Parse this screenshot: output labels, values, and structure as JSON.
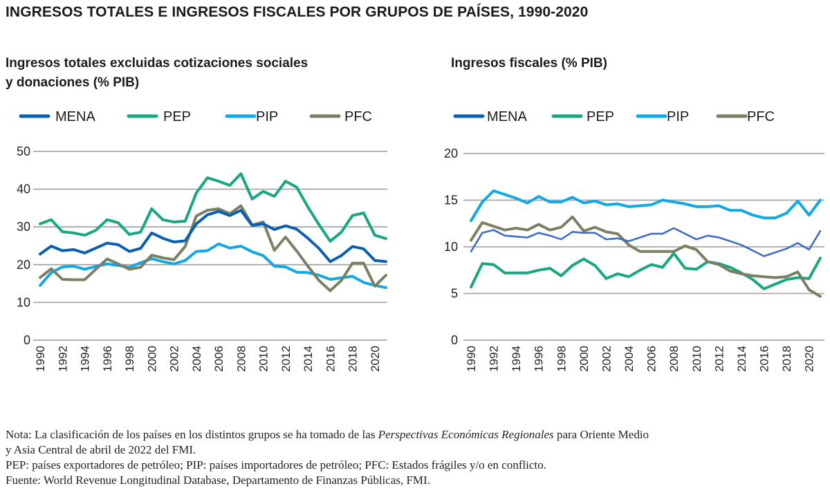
{
  "title": "INGRESOS TOTALES E INGRESOS FISCALES POR GRUPOS DE PAÍSES, 1990-2020",
  "colors": {
    "MENA": "#0a5fb0",
    "PEP": "#18a77e",
    "PIP": "#12a8e6",
    "PFC": "#7a8062",
    "MENA_right": "#3e6ec4"
  },
  "chart_data": [
    {
      "type": "line",
      "title": "Ingresos totales excluidas cotizaciones sociales y donaciones (% PIB)",
      "title_lines": [
        "Ingresos totales excluidas cotizaciones sociales",
        "y donaciones (% PIB)"
      ],
      "xlabel": "",
      "ylabel": "",
      "ylim": [
        0,
        50
      ],
      "yticks": [
        "0",
        "10",
        "20",
        "30",
        "40",
        "50"
      ],
      "ytick_values": [
        0,
        10,
        20,
        30,
        40,
        50
      ],
      "xtick_labels": [
        "1990",
        "1992",
        "1994",
        "1996",
        "1998",
        "2000",
        "2002",
        "2004",
        "2006",
        "2008",
        "2010",
        "2012",
        "2014",
        "2016",
        "2018",
        "2020"
      ],
      "grid": true,
      "legend": "top",
      "x": [
        1990,
        1991,
        1992,
        1993,
        1994,
        1995,
        1996,
        1997,
        1998,
        1999,
        2000,
        2001,
        2002,
        2003,
        2004,
        2005,
        2006,
        2007,
        2008,
        2009,
        2010,
        2011,
        2012,
        2013,
        2014,
        2015,
        2016,
        2017,
        2018,
        2019,
        2020,
        2021
      ],
      "series": [
        {
          "name": "MENA",
          "values": [
            22.8,
            24.9,
            23.7,
            24.0,
            23.1,
            24.4,
            25.7,
            25.3,
            23.5,
            24.3,
            28.4,
            27.0,
            26.0,
            26.3,
            30.8,
            33.2,
            34.1,
            33.0,
            34.4,
            30.4,
            30.8,
            29.3,
            30.3,
            29.4,
            27.0,
            24.3,
            20.8,
            22.4,
            24.8,
            24.2,
            21.1,
            20.8
          ]
        },
        {
          "name": "PEP",
          "values": [
            30.8,
            31.9,
            28.7,
            28.4,
            27.8,
            29.1,
            31.9,
            31.1,
            28.0,
            28.6,
            34.8,
            31.9,
            31.3,
            31.5,
            39.0,
            43.0,
            42.1,
            41.0,
            44.1,
            37.4,
            39.4,
            38.1,
            42.1,
            40.5,
            35.3,
            30.6,
            26.2,
            28.6,
            33.0,
            33.7,
            27.8,
            26.9
          ]
        },
        {
          "name": "PIP",
          "values": [
            14.5,
            17.9,
            19.4,
            19.6,
            18.8,
            19.5,
            20.2,
            19.8,
            19.3,
            20.5,
            21.6,
            20.8,
            20.2,
            21.1,
            23.5,
            23.7,
            25.5,
            24.4,
            24.9,
            23.4,
            22.4,
            19.6,
            19.4,
            18.0,
            17.9,
            17.2,
            16.1,
            16.5,
            16.9,
            15.3,
            14.5,
            13.9
          ]
        },
        {
          "name": "PFC",
          "values": [
            16.6,
            18.9,
            16.1,
            16.0,
            16.0,
            18.8,
            21.5,
            20.2,
            18.8,
            19.3,
            22.5,
            21.8,
            21.3,
            24.8,
            32.9,
            34.4,
            34.8,
            33.5,
            35.6,
            30.5,
            31.3,
            23.8,
            27.3,
            23.6,
            19.6,
            15.8,
            13.1,
            15.8,
            20.4,
            20.4,
            14.3,
            17.2
          ]
        }
      ]
    },
    {
      "type": "line",
      "title": "Ingresos fiscales (% PIB)",
      "title_lines": [
        "Ingresos fiscales (% PIB)"
      ],
      "xlabel": "",
      "ylabel": "",
      "ylim": [
        0,
        20
      ],
      "yticks": [
        "0",
        "5",
        "10",
        "15",
        "20"
      ],
      "ytick_values": [
        0,
        5,
        10,
        15,
        20
      ],
      "xtick_labels": [
        "1990",
        "1992",
        "1994",
        "1996",
        "1998",
        "2000",
        "2002",
        "2004",
        "2006",
        "2008",
        "2010",
        "2012",
        "2014",
        "2016",
        "2018",
        "2020"
      ],
      "grid": true,
      "legend": "top",
      "x": [
        1990,
        1991,
        1992,
        1993,
        1994,
        1995,
        1996,
        1997,
        1998,
        1999,
        2000,
        2001,
        2002,
        2003,
        2004,
        2005,
        2006,
        2007,
        2008,
        2009,
        2010,
        2011,
        2012,
        2013,
        2014,
        2015,
        2016,
        2017,
        2018,
        2019,
        2020,
        2021
      ],
      "series": [
        {
          "name": "MENA",
          "values": [
            9.5,
            11.5,
            11.8,
            11.2,
            11.1,
            11.0,
            11.5,
            11.2,
            10.8,
            11.6,
            11.5,
            11.5,
            10.8,
            10.9,
            10.6,
            11.0,
            11.4,
            11.4,
            12.0,
            11.4,
            10.8,
            11.2,
            11.0,
            10.6,
            10.2,
            9.6,
            9.0,
            9.4,
            9.8,
            10.4,
            9.7,
            11.7
          ]
        },
        {
          "name": "PEP",
          "values": [
            5.7,
            8.2,
            8.1,
            7.2,
            7.2,
            7.2,
            7.5,
            7.7,
            6.9,
            8.0,
            8.7,
            8.0,
            6.6,
            7.1,
            6.8,
            7.5,
            8.1,
            7.8,
            9.3,
            7.7,
            7.6,
            8.4,
            8.2,
            7.8,
            7.2,
            6.5,
            5.5,
            6.0,
            6.5,
            6.7,
            6.6,
            8.8
          ]
        },
        {
          "name": "PIP",
          "values": [
            12.8,
            14.8,
            16.0,
            15.6,
            15.2,
            14.7,
            15.4,
            14.8,
            14.8,
            15.3,
            14.7,
            14.9,
            14.5,
            14.6,
            14.3,
            14.4,
            14.5,
            15.0,
            14.8,
            14.6,
            14.3,
            14.3,
            14.4,
            13.9,
            13.9,
            13.4,
            13.1,
            13.1,
            13.6,
            14.9,
            13.4,
            15.0
          ]
        },
        {
          "name": "PFC",
          "values": [
            10.7,
            12.6,
            12.2,
            11.8,
            12.0,
            11.8,
            12.4,
            11.8,
            12.1,
            13.2,
            11.7,
            12.1,
            11.6,
            11.4,
            10.2,
            9.5,
            9.5,
            9.5,
            9.5,
            10.1,
            9.7,
            8.4,
            8.1,
            7.4,
            7.1,
            6.9,
            6.8,
            6.7,
            6.8,
            7.3,
            5.4,
            4.7
          ]
        }
      ]
    }
  ],
  "notes": {
    "line1_prefix": "Nota: La clasificación de los países en los distintos grupos se ha tomado de las ",
    "line1_italic": "Perspectivas Económicas Regionales",
    "line1_suffix": " para Oriente Medio",
    "line2": "y Asia Central de abril de 2022 del FMI.",
    "line3": "PEP: países exportadores de petróleo; PIP: países importadores de petróleo; PFC: Estados frágiles y/o en conflicto.",
    "line4": "Fuente: World Revenue Longitudinal Database, Departamento de Finanzas Públicas, FMI."
  }
}
